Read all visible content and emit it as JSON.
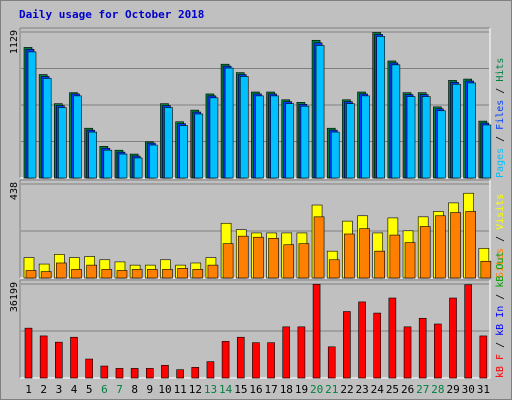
{
  "chart_data": {
    "title": "Daily usage for October 2018",
    "days": [
      "1",
      "2",
      "3",
      "4",
      "5",
      "6",
      "7",
      "8",
      "9",
      "10",
      "11",
      "12",
      "13",
      "14",
      "15",
      "16",
      "17",
      "18",
      "19",
      "20",
      "21",
      "22",
      "23",
      "24",
      "25",
      "26",
      "27",
      "28",
      "29",
      "30",
      "31"
    ],
    "weekend_days": [
      "6",
      "7",
      "13",
      "14",
      "20",
      "21",
      "27",
      "28"
    ],
    "colors": {
      "title": "#0000cc",
      "panel_bg": "#c0c0c0",
      "frame": "#808080",
      "hits": "#008040",
      "files": "#0040ff",
      "pages": "#00c0ff",
      "visits": "#ffff00",
      "sites": "#ff8000",
      "kb_out": "#00a000",
      "kb_in": "#0000ff",
      "kb_f": "#ff0000",
      "weekday_label": "#000000",
      "weekend_label": "#008040"
    },
    "panels": [
      {
        "type": "bar",
        "ymax_label": "1129",
        "ymax": 1129,
        "ylabel_parts": [
          {
            "text": "Pages",
            "color": "#00c0ff"
          },
          {
            "text": " / ",
            "color": "#000000"
          },
          {
            "text": "Files",
            "color": "#0040ff"
          },
          {
            "text": " / ",
            "color": "#000000"
          },
          {
            "text": "Hits",
            "color": "#008040"
          }
        ],
        "series": [
          {
            "name": "Hits",
            "values": [
              1010,
              800,
              575,
              660,
              385,
              245,
              215,
              185,
              280,
              575,
              435,
              525,
              650,
              880,
              815,
              665,
              665,
              605,
              585,
              1065,
              385,
              605,
              665,
              1125,
              905,
              660,
              660,
              550,
              755,
              765,
              440
            ]
          },
          {
            "name": "Files",
            "values": [
              995,
              785,
              560,
              650,
              370,
              230,
              200,
              170,
              270,
              560,
              420,
              510,
              635,
              865,
              800,
              650,
              650,
              590,
              570,
              1045,
              370,
              590,
              650,
              1110,
              890,
              645,
              645,
              535,
              740,
              750,
              425
            ]
          },
          {
            "name": "Pages",
            "values": [
              975,
              770,
              545,
              635,
              355,
              215,
              185,
              155,
              255,
              545,
              405,
              495,
              620,
              850,
              785,
              635,
              635,
              575,
              555,
              1025,
              355,
              575,
              635,
              1095,
              875,
              630,
              630,
              520,
              725,
              735,
              410
            ]
          }
        ]
      },
      {
        "type": "bar",
        "ymax_label": "438",
        "ymax": 438,
        "ylabel_parts": [
          {
            "text": "Sites",
            "color": "#ff8000"
          },
          {
            "text": " / ",
            "color": "#000000"
          },
          {
            "text": "Visits",
            "color": "#ffff00"
          }
        ],
        "series": [
          {
            "name": "Visits",
            "values": [
              95,
              65,
              110,
              95,
              100,
              85,
              75,
              60,
              60,
              85,
              60,
              70,
              95,
              255,
              225,
              210,
              210,
              210,
              210,
              340,
              125,
              265,
              290,
              210,
              280,
              220,
              285,
              310,
              350,
              395,
              138
            ]
          },
          {
            "name": "Sites",
            "values": [
              35,
              30,
              70,
              40,
              60,
              40,
              35,
              40,
              40,
              40,
              45,
              40,
              60,
              160,
              195,
              190,
              185,
              155,
              160,
              285,
              85,
              205,
              230,
              125,
              200,
              165,
              240,
              290,
              305,
              310,
              78
            ]
          }
        ]
      },
      {
        "type": "bar",
        "ymax_label": "36199",
        "ymax": 36199,
        "ylabel_parts": [
          {
            "text": "kB F",
            "color": "#ff0000"
          },
          {
            "text": " / ",
            "color": "#000000"
          },
          {
            "text": "kB In",
            "color": "#0000ff"
          },
          {
            "text": " / ",
            "color": "#000000"
          },
          {
            "text": "kB Out",
            "color": "#00a000"
          }
        ],
        "series": [
          {
            "name": "kB F",
            "values": [
              19200,
              16200,
              13800,
              15700,
              7300,
              4600,
              3700,
              3700,
              3700,
              4900,
              3200,
              4100,
              6300,
              14100,
              15700,
              13600,
              13600,
              19700,
              19700,
              36100,
              12000,
              25600,
              29300,
              25000,
              30800,
              19700,
              23000,
              20800,
              30800,
              35900,
              16200
            ]
          }
        ]
      }
    ]
  }
}
